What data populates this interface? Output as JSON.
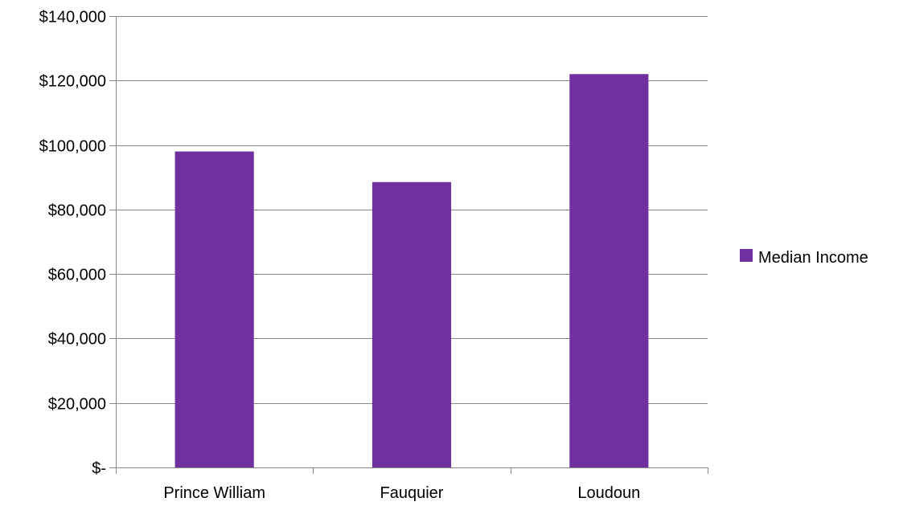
{
  "chart_data": {
    "type": "bar",
    "title": "",
    "xlabel": "",
    "ylabel": "",
    "categories": [
      "Prince William",
      "Fauquier",
      "Loudoun"
    ],
    "series": [
      {
        "name": "Median Income",
        "values": [
          98000,
          88500,
          122000
        ],
        "color": "#7030a0"
      }
    ],
    "ylim": [
      0,
      140000
    ],
    "yticks": [
      0,
      20000,
      40000,
      60000,
      80000,
      100000,
      120000,
      140000
    ],
    "ytick_labels": [
      "$-",
      "$20,000",
      "$40,000",
      "$60,000",
      "$80,000",
      "$100,000",
      "$120,000",
      "$140,000"
    ],
    "grid": true,
    "gridline_color": "#868686",
    "legend": {
      "position": "right",
      "entries": [
        "Median Income"
      ]
    }
  }
}
